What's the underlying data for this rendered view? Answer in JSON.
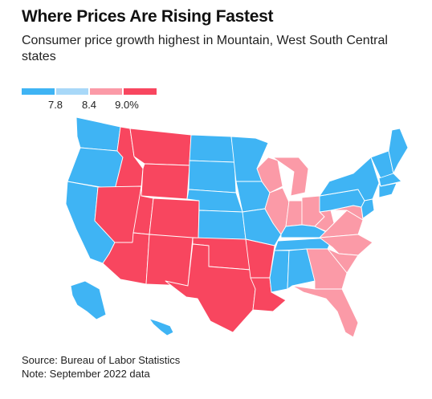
{
  "header": {
    "title": "Where Prices Are Rising Fastest",
    "subtitle": "Consumer price growth highest in Mountain, West South Central states"
  },
  "legend": {
    "bins": [
      {
        "color": "#3fb4f4"
      },
      {
        "color": "#a8d8f8"
      },
      {
        "color": "#fb9aa7"
      },
      {
        "color": "#f8465f"
      }
    ],
    "breaks": [
      {
        "label": "7.8",
        "value": 7.8
      },
      {
        "label": "8.4",
        "value": 8.4
      },
      {
        "label": "9.0%",
        "value": 9.0
      }
    ]
  },
  "colors": {
    "below_7_8": "#3fb4f4",
    "from_8_4_to_9_0": "#fb9aa7",
    "above_9_0": "#f8465f",
    "border": "#ffffff"
  },
  "regions": [
    {
      "name": "Pacific",
      "bin": 0
    },
    {
      "name": "Mountain",
      "bin": 3
    },
    {
      "name": "West North Central",
      "bin": 0
    },
    {
      "name": "West South Central",
      "bin": 3
    },
    {
      "name": "East North Central",
      "bin": 2
    },
    {
      "name": "East South Central",
      "bin": 0
    },
    {
      "name": "South Atlantic",
      "bin": 2
    },
    {
      "name": "Middle Atlantic",
      "bin": 0
    },
    {
      "name": "New England",
      "bin": 0
    }
  ],
  "footer": {
    "source": "Source: Bureau of Labor Statistics",
    "note": "Note: September 2022 data"
  }
}
